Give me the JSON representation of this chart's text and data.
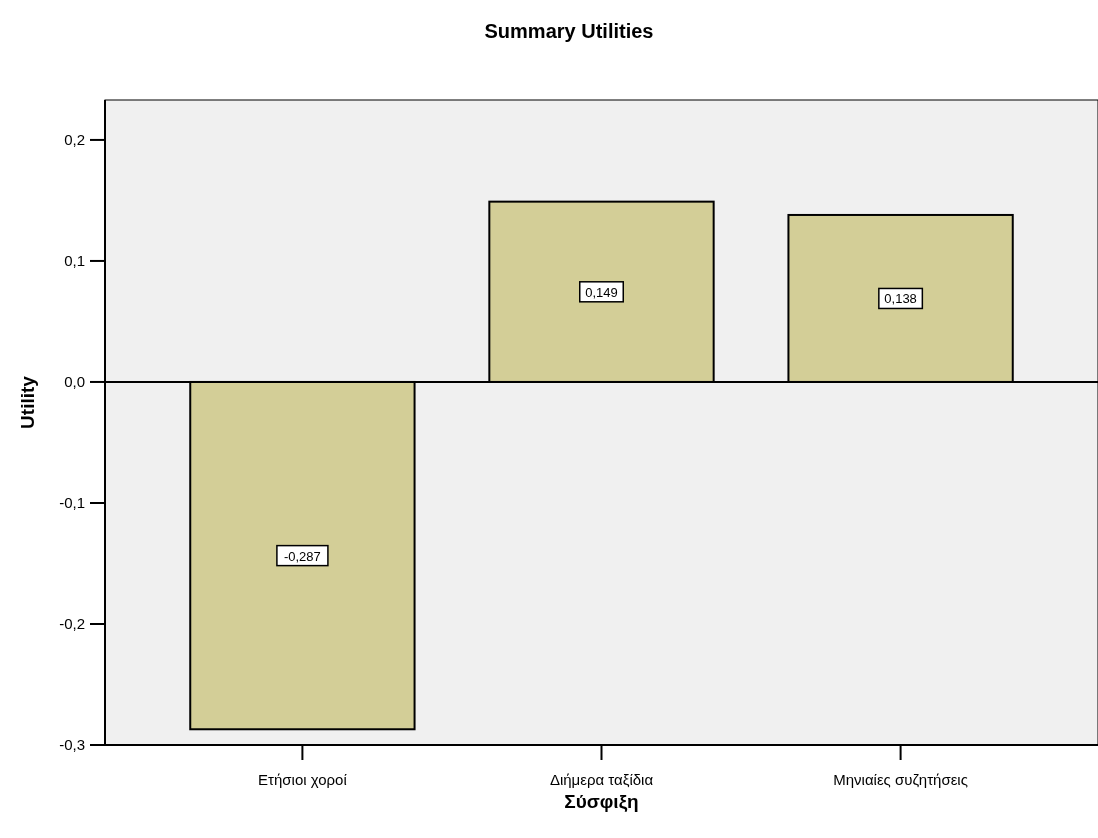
{
  "chart_data": {
    "type": "bar",
    "title": "Summary Utilities",
    "xlabel": "Σύσφιξη",
    "ylabel": "Utility",
    "categories": [
      "Ετήσιοι χοροί",
      "Διήμερα ταξίδια",
      "Μηνιαίες συζητήσεις"
    ],
    "values": [
      -0.287,
      0.149,
      0.138
    ],
    "color": "#d3ce97",
    "ylim": [
      -0.3,
      0.233
    ],
    "yticks": [
      {
        "value": -0.3,
        "label": "-0,3"
      },
      {
        "value": -0.2,
        "label": "-0,2"
      },
      {
        "value": -0.1,
        "label": "-0,1"
      },
      {
        "value": 0,
        "label": "0,0"
      },
      {
        "value": 0.1,
        "label": "0,1"
      },
      {
        "value": 0.2,
        "label": "0,2"
      }
    ],
    "ref_lines": [
      {
        "axis": "y",
        "value": 0,
        "color": "#000000"
      }
    ],
    "value_labels": [
      "-0,287",
      "0,149",
      "0,138"
    ],
    "grid": false
  }
}
